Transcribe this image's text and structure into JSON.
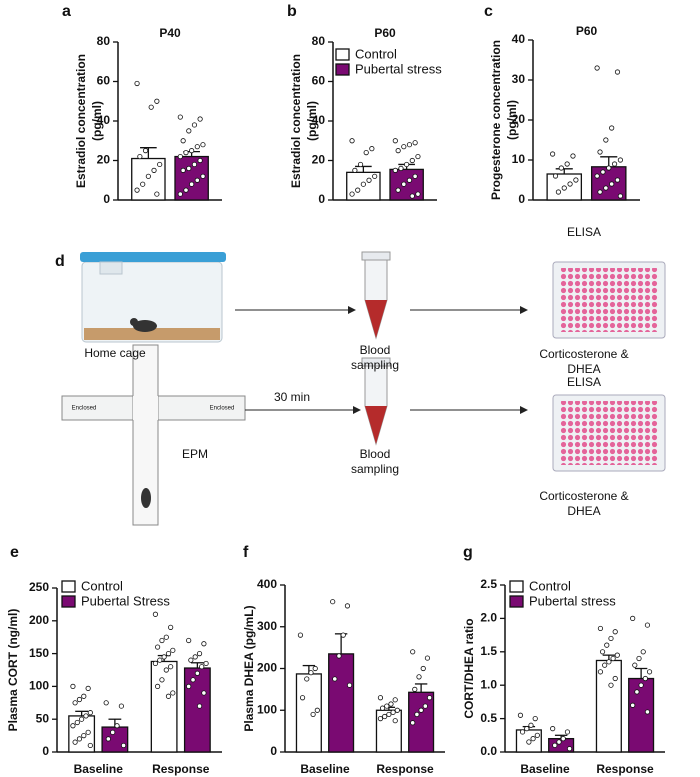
{
  "chart_data": [
    {
      "type": "bar",
      "panel": "a",
      "title": "P40",
      "ylabel": [
        "Estradiol concentration",
        "(pg/ml)"
      ],
      "categories": [
        null
      ],
      "ylim": [
        0,
        80
      ],
      "yticks": [
        0,
        20,
        40,
        60,
        80
      ],
      "series": [
        {
          "color": "#ffffff",
          "values": [
            21
          ],
          "errors": [
            5.5
          ],
          "points": [
            [
              59,
              50,
              47,
              25,
              22,
              18,
              15,
              12,
              8,
              5,
              3
            ]
          ]
        },
        {
          "color": "#7a0a72",
          "values": [
            22
          ],
          "errors": [
            2.5
          ],
          "points": [
            [
              42,
              41,
              38,
              35,
              30,
              28,
              27,
              25,
              24,
              22,
              20,
              18,
              16,
              15,
              12,
              10,
              8,
              5,
              3
            ]
          ]
        }
      ]
    },
    {
      "type": "bar",
      "panel": "b",
      "title": "P60",
      "ylabel": [
        "Estradiol concentration",
        "(pg/ml)"
      ],
      "categories": [
        null
      ],
      "ylim": [
        0,
        80
      ],
      "yticks": [
        0,
        20,
        40,
        60,
        80
      ],
      "series": [
        {
          "name": "Control",
          "color": "#ffffff",
          "values": [
            14
          ],
          "errors": [
            3
          ],
          "points": [
            [
              30,
              26,
              24,
              18,
              15,
              12,
              10,
              8,
              5,
              3
            ]
          ]
        },
        {
          "name": "Pubertal stress",
          "color": "#7a0a72",
          "values": [
            15.5
          ],
          "errors": [
            2.5
          ],
          "points": [
            [
              30,
              29,
              28,
              27,
              25,
              22,
              20,
              18,
              16,
              15,
              12,
              10,
              8,
              5,
              3,
              2
            ]
          ]
        }
      ]
    },
    {
      "type": "bar",
      "panel": "c",
      "title": "P60",
      "ylabel": [
        "Progesterone concentration",
        "(pg/ml)"
      ],
      "categories": [
        null
      ],
      "ylim": [
        0,
        40
      ],
      "yticks": [
        0,
        10,
        20,
        30,
        40
      ],
      "series": [
        {
          "color": "#ffffff",
          "values": [
            6.5
          ],
          "errors": [
            1.3
          ],
          "points": [
            [
              11.5,
              11,
              9,
              8,
              6,
              5,
              4,
              3,
              2
            ]
          ]
        },
        {
          "color": "#7a0a72",
          "values": [
            8.3
          ],
          "errors": [
            2.5
          ],
          "points": [
            [
              33,
              32,
              18,
              15,
              12,
              10,
              9,
              8,
              7,
              6,
              5,
              4,
              3,
              2,
              1
            ]
          ]
        }
      ]
    },
    {
      "type": "bar",
      "panel": "e",
      "ylabel": "Plasma CORT (ng/ml)",
      "categories": [
        "Baseline",
        "Response"
      ],
      "ylim": [
        0,
        250
      ],
      "yticks": [
        0,
        50,
        100,
        150,
        200,
        250
      ],
      "series": [
        {
          "name": "Control",
          "color": "#ffffff",
          "values": [
            55,
            138
          ],
          "errors": [
            7,
            9
          ],
          "points": [
            [
              100,
              97,
              85,
              80,
              75,
              60,
              55,
              50,
              45,
              40,
              30,
              25,
              20,
              15,
              10
            ],
            [
              210,
              190,
              175,
              170,
              160,
              155,
              150,
              145,
              140,
              135,
              130,
              125,
              110,
              100,
              90,
              85
            ]
          ]
        },
        {
          "name": "Pubertal Stress",
          "color": "#7a0a72",
          "values": [
            38,
            128
          ],
          "errors": [
            12,
            8
          ],
          "points": [
            [
              75,
              70,
              40,
              30,
              20,
              10
            ],
            [
              170,
              165,
              150,
              145,
              140,
              135,
              130,
              120,
              110,
              100,
              90,
              70
            ]
          ]
        }
      ]
    },
    {
      "type": "bar",
      "panel": "f",
      "ylabel": "Plasma DHEA (pg/mL)",
      "categories": [
        "Baseline",
        "Response"
      ],
      "ylim": [
        0,
        400
      ],
      "yticks": [
        0,
        100,
        200,
        300,
        400
      ],
      "series": [
        {
          "color": "#ffffff",
          "values": [
            187,
            100
          ],
          "errors": [
            20,
            7
          ],
          "points": [
            [
              280,
              200,
              190,
              175,
              130,
              100,
              90
            ],
            [
              130,
              125,
              115,
              110,
              105,
              100,
              95,
              90,
              85,
              80,
              75
            ]
          ]
        },
        {
          "color": "#7a0a72",
          "values": [
            235,
            143
          ],
          "errors": [
            48,
            20
          ],
          "points": [
            [
              360,
              350,
              280,
              230,
              175,
              160
            ],
            [
              240,
              225,
              200,
              180,
              150,
              130,
              110,
              100,
              90,
              70
            ]
          ]
        }
      ]
    },
    {
      "type": "bar",
      "panel": "g",
      "ylabel": "CORT/DHEA ratio",
      "categories": [
        "Baseline",
        "Response"
      ],
      "ylim": [
        0,
        2.5
      ],
      "yticks": [
        {
          "value": 0,
          "label": "0.0"
        },
        0.5,
        {
          "value": 1,
          "label": "1.0"
        },
        1.5,
        {
          "value": 2,
          "label": "2.0"
        },
        2.5
      ],
      "series": [
        {
          "name": "Control",
          "color": "#ffffff",
          "values": [
            0.33,
            1.37
          ],
          "errors": [
            0.05,
            0.08
          ],
          "points": [
            [
              0.55,
              0.5,
              0.4,
              0.35,
              0.3,
              0.25,
              0.2,
              0.15
            ],
            [
              1.85,
              1.8,
              1.7,
              1.6,
              1.5,
              1.45,
              1.4,
              1.35,
              1.3,
              1.2,
              1.1,
              1
            ]
          ]
        },
        {
          "name": "Pubertal stress",
          "color": "#7a0a72",
          "values": [
            0.2,
            1.1
          ],
          "errors": [
            0.05,
            0.15
          ],
          "points": [
            [
              0.35,
              0.3,
              0.2,
              0.15,
              0.1,
              0.05
            ],
            [
              2,
              1.9,
              1.5,
              1.4,
              1.3,
              1.2,
              1.1,
              1,
              0.9,
              0.7,
              0.6
            ]
          ]
        }
      ]
    }
  ],
  "diagram": {
    "panel": "d",
    "rows": [
      {
        "start": "Home cage",
        "sampling": "Blood sampling",
        "assay": "ELISA",
        "analytes": "Corticosterone & DHEA"
      },
      {
        "start": "EPM",
        "arms": [
          "Enclosed",
          "Enclosed"
        ],
        "delay": "30 min",
        "sampling": "Blood sampling",
        "assay": "ELISA",
        "analytes": "Corticosterone & DHEA"
      }
    ]
  }
}
